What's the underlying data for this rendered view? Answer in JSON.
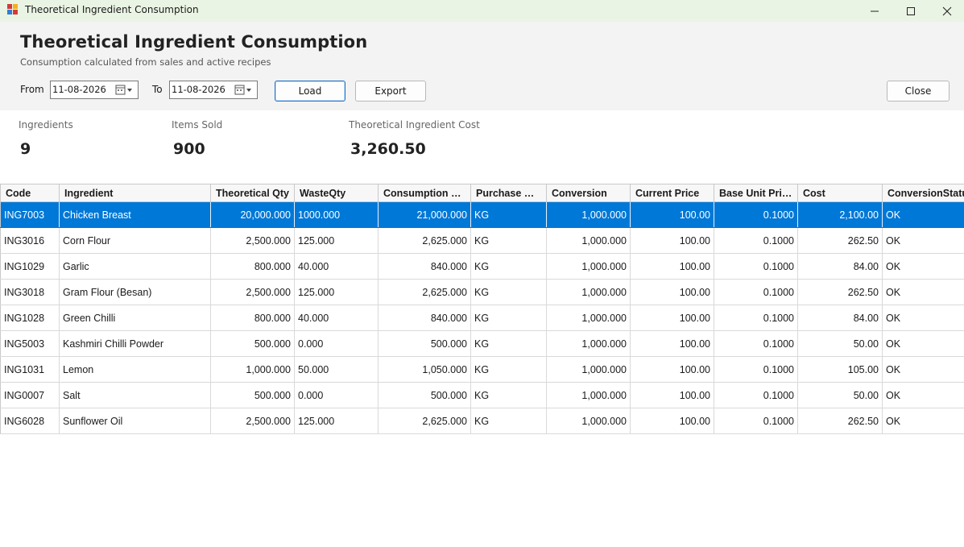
{
  "window": {
    "title": "Theoretical Ingredient Consumption"
  },
  "header": {
    "title": "Theoretical Ingredient Consumption",
    "subtitle": "Consumption calculated from sales and active recipes",
    "from_label": "From",
    "from_value": "11-08-2026",
    "to_label": "To",
    "to_value": "11-08-2026",
    "load_label": "Load",
    "export_label": "Export",
    "close_label": "Close"
  },
  "summary": {
    "ingredients_label": "Ingredients",
    "ingredients_value": "9",
    "items_sold_label": "Items Sold",
    "items_sold_value": "900",
    "cost_label": "Theoretical Ingredient Cost",
    "cost_value": "3,260.50"
  },
  "grid": {
    "columns": [
      "Code",
      "Ingredient",
      "Theoretical Qty",
      "WasteQty",
      "Consumption Qty",
      "Purchase Unit",
      "Conversion",
      "Current Price",
      "Base Unit Price",
      "Cost",
      "ConversionStatus"
    ],
    "selected_row": 0,
    "rows": [
      [
        "ING7003",
        "Chicken Breast",
        "20,000.000",
        "1000.000",
        "21,000.000",
        "KG",
        "1,000.000",
        "100.00",
        "0.1000",
        "2,100.00",
        "OK"
      ],
      [
        "ING3016",
        "Corn Flour",
        "2,500.000",
        "125.000",
        "2,625.000",
        "KG",
        "1,000.000",
        "100.00",
        "0.1000",
        "262.50",
        "OK"
      ],
      [
        "ING1029",
        "Garlic",
        "800.000",
        "40.000",
        "840.000",
        "KG",
        "1,000.000",
        "100.00",
        "0.1000",
        "84.00",
        "OK"
      ],
      [
        "ING3018",
        "Gram Flour (Besan)",
        "2,500.000",
        "125.000",
        "2,625.000",
        "KG",
        "1,000.000",
        "100.00",
        "0.1000",
        "262.50",
        "OK"
      ],
      [
        "ING1028",
        "Green Chilli",
        "800.000",
        "40.000",
        "840.000",
        "KG",
        "1,000.000",
        "100.00",
        "0.1000",
        "84.00",
        "OK"
      ],
      [
        "ING5003",
        "Kashmiri Chilli Powder",
        "500.000",
        "0.000",
        "500.000",
        "KG",
        "1,000.000",
        "100.00",
        "0.1000",
        "50.00",
        "OK"
      ],
      [
        "ING1031",
        "Lemon",
        "1,000.000",
        "50.000",
        "1,050.000",
        "KG",
        "1,000.000",
        "100.00",
        "0.1000",
        "105.00",
        "OK"
      ],
      [
        "ING0007",
        "Salt",
        "500.000",
        "0.000",
        "500.000",
        "KG",
        "1,000.000",
        "100.00",
        "0.1000",
        "50.00",
        "OK"
      ],
      [
        "ING6028",
        "Sunflower Oil",
        "2,500.000",
        "125.000",
        "2,625.000",
        "KG",
        "1,000.000",
        "100.00",
        "0.1000",
        "262.50",
        "OK"
      ]
    ]
  },
  "colors": {
    "titlebar": "#eaf4e4",
    "header_bg": "#f3f3f3",
    "selection": "#0078d7"
  },
  "icons": [
    "app-icon",
    "minimize-icon",
    "maximize-icon",
    "close-icon",
    "calendar-icon"
  ]
}
